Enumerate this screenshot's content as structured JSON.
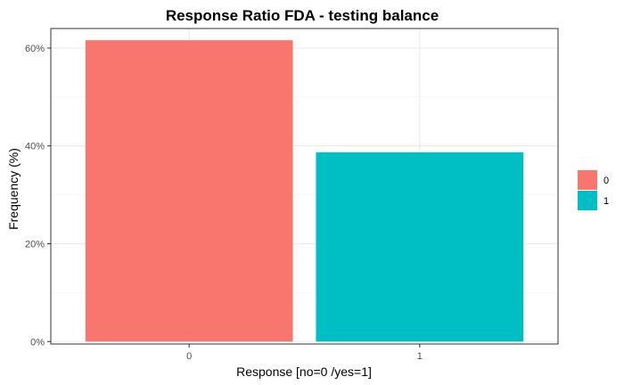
{
  "chart_data": {
    "type": "bar",
    "title": "Response Ratio FDA - testing balance",
    "xlabel": "Response [no=0 /yes=1]",
    "ylabel": "Frequency (%)",
    "categories": [
      "0",
      "1"
    ],
    "values": [
      61.6,
      38.7
    ],
    "value_unit": "%",
    "ylim": [
      -0.5,
      64
    ],
    "yticks": [
      0,
      20,
      40,
      60
    ],
    "ytick_labels": [
      "0%",
      "20%",
      "40%",
      "60%"
    ],
    "grid": true,
    "legend": {
      "placement": "right",
      "entries": [
        "0",
        "1"
      ]
    },
    "colors": [
      "#F8766D",
      "#00BFC4"
    ]
  }
}
